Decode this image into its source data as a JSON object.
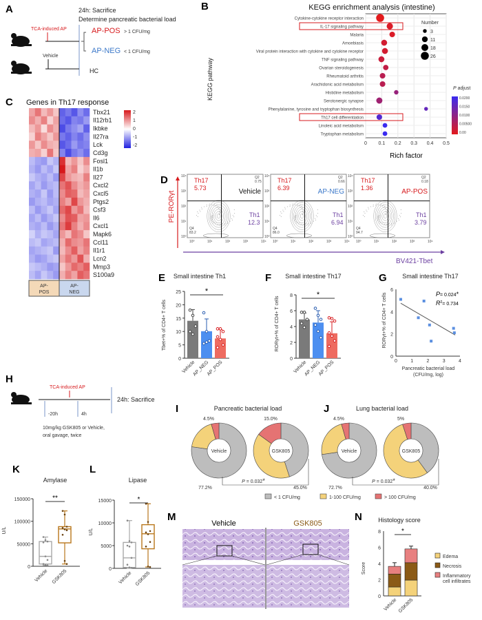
{
  "panels": {
    "A": "A",
    "B": "B",
    "C": "C",
    "D": "D",
    "E": "E",
    "F": "F",
    "G": "G",
    "H": "H",
    "I": "I",
    "J": "J",
    "K": "K",
    "L": "L",
    "M": "M",
    "N": "N"
  },
  "colors": {
    "red": "#d7191c",
    "blue": "#3b78c9",
    "purple": "#6b3fa0",
    "gray": "#bdbdbd",
    "yellow": "#f4d27a",
    "salmon": "#e57373",
    "brown": "#8b5a16",
    "amber": "#b8761a"
  },
  "panel_a": {
    "sacrifice": "24h: Sacrifice",
    "determine": "Determine pancreatic bacterial load",
    "tca": "TCA-induced AP",
    "vehicle": "Vehicle",
    "ap_pos": "AP-POS",
    "ap_pos_crit": "> 1 CFU/mg",
    "ap_neg": "AP-NEG",
    "ap_neg_crit": "< 1 CFU/mg",
    "hc": "HC",
    "icons": [
      "mouse-icon",
      "mouse-icon"
    ]
  },
  "chart_data": [
    {
      "id": "B",
      "type": "scatter",
      "title": "KEGG enrichment analysis (intestine)",
      "xlabel": "Rich factor",
      "ylabel": "KEGG pathway",
      "xlim": [
        0,
        0.5
      ],
      "xticks": [
        "0",
        "0.1",
        "0.2",
        "0.3",
        "0.4",
        "0.5"
      ],
      "grid": true,
      "categories": [
        "Cytokine-cytokine receptor interaction",
        "IL-17 signaling pathway",
        "Malaria",
        "Amoebiasis",
        "Viral protein interaction with cytokine and cytokine receptor",
        "TNF signaling pathway",
        "Ovarian steroidogenesis",
        "Rheumatoid arthritis",
        "Arachidonic acid metabolism",
        "Histidine metabolism",
        "Serotonergic synapse",
        "Phenylalanine, tyrosine and tryptophan biosynthesis",
        "Th17 cell differentiation",
        "Linoleic acid metabolism",
        "Tryptophan metabolism"
      ],
      "rich_factor": [
        0.09,
        0.15,
        0.165,
        0.115,
        0.12,
        0.098,
        0.125,
        0.105,
        0.105,
        0.19,
        0.085,
        0.375,
        0.085,
        0.12,
        0.12
      ],
      "number": [
        26,
        14,
        10,
        12,
        12,
        12,
        9,
        10,
        10,
        5,
        13,
        3,
        10,
        6,
        6
      ],
      "p_adjust": [
        0.0,
        0.001,
        0.001,
        0.002,
        0.002,
        0.003,
        0.004,
        0.005,
        0.005,
        0.009,
        0.008,
        0.015,
        0.017,
        0.02,
        0.02
      ],
      "highlighted": [
        "IL-17 signaling pathway",
        "Th17 cell differentiation"
      ],
      "size_legend": {
        "title": "Number",
        "values": [
          3,
          11,
          18,
          26
        ]
      },
      "color_legend": {
        "title_italic": "P",
        "title": " adjust",
        "ticks": [
          "0.0200",
          "0.0150",
          "0.0100",
          "0.00500",
          "0.00"
        ]
      },
      "legend_placement": "right"
    },
    {
      "id": "C",
      "type": "heatmap",
      "title": "Genes in Th17 response",
      "genes": [
        "Tbx21",
        "Il12rb1",
        "Ikbke",
        "Il27ra",
        "Lck",
        "Cd3g",
        "Fosl1",
        "Il1b",
        "Il27",
        "Cxcl2",
        "Cxcl5",
        "Ptgs2",
        "Csf3",
        "Il6",
        "Cxcl1",
        "Mapk6",
        "Ccl11",
        "Il1r1",
        "Lcn2",
        "Mmp3",
        "S100a9"
      ],
      "groups": [
        "AP-\nPOS",
        "AP-\nNEG"
      ],
      "group_labels": [
        [
          "AP-",
          "POS"
        ],
        [
          "AP-",
          "NEG"
        ]
      ],
      "colorbar_ticks": [
        "2",
        "1",
        "0",
        "-1",
        "-2"
      ],
      "values": [
        [
          0.8,
          1.2,
          0.6,
          0.9,
          0.5,
          -1.4,
          -1.2,
          -1.5,
          -1.0,
          -1.3
        ],
        [
          1.0,
          0.7,
          1.1,
          0.4,
          0.8,
          -1.3,
          -1.5,
          -1.1,
          -1.2,
          -0.9
        ],
        [
          0.6,
          0.9,
          0.3,
          1.0,
          0.7,
          -1.6,
          -1.2,
          -1.0,
          -0.8,
          -1.4
        ],
        [
          0.4,
          1.1,
          0.8,
          0.5,
          0.9,
          -1.2,
          -1.4,
          -1.1,
          -1.3,
          -1.0
        ],
        [
          0.9,
          0.5,
          1.0,
          0.7,
          0.6,
          -1.5,
          -1.3,
          -0.9,
          -1.2,
          -1.1
        ],
        [
          0.7,
          0.8,
          0.4,
          1.2,
          0.5,
          -1.1,
          -1.6,
          -1.2,
          -1.0,
          -1.3
        ],
        [
          -0.6,
          -0.8,
          -0.9,
          -0.5,
          -0.7,
          1.8,
          0.6,
          0.9,
          0.5,
          1.0
        ],
        [
          -0.7,
          -0.9,
          -0.6,
          -0.8,
          -0.5,
          2.0,
          0.8,
          1.1,
          0.4,
          0.7
        ],
        [
          -0.5,
          -0.7,
          -0.8,
          -0.6,
          -0.9,
          1.6,
          0.9,
          0.7,
          0.6,
          1.1
        ],
        [
          -0.8,
          -0.6,
          -0.9,
          -0.7,
          -0.6,
          1.2,
          1.5,
          1.0,
          0.7,
          0.9
        ],
        [
          -0.7,
          -0.8,
          -0.5,
          -0.9,
          -0.6,
          1.0,
          1.4,
          1.3,
          0.6,
          0.8
        ],
        [
          -0.9,
          -0.7,
          -0.6,
          -0.8,
          -0.7,
          1.1,
          0.8,
          1.6,
          0.9,
          0.7
        ],
        [
          -0.6,
          -0.9,
          -0.7,
          -0.5,
          -0.8,
          1.3,
          1.6,
          0.9,
          1.2,
          0.6
        ],
        [
          -0.8,
          -0.6,
          -0.9,
          -0.7,
          -0.5,
          1.0,
          1.5,
          1.4,
          0.8,
          0.9
        ],
        [
          -0.7,
          -0.8,
          -0.6,
          -0.9,
          -0.7,
          1.2,
          1.7,
          1.1,
          0.7,
          1.0
        ],
        [
          -0.4,
          -0.7,
          -0.5,
          -0.6,
          -0.8,
          0.9,
          0.6,
          1.2,
          1.0,
          0.5
        ],
        [
          -0.6,
          -0.5,
          -0.8,
          -0.7,
          -0.6,
          0.7,
          1.3,
          1.0,
          0.9,
          1.2
        ],
        [
          -0.8,
          -0.7,
          -0.6,
          -0.5,
          -0.9,
          0.6,
          1.0,
          1.4,
          0.8,
          1.1
        ],
        [
          -0.7,
          -0.9,
          -0.8,
          -0.6,
          -0.5,
          0.8,
          1.2,
          0.9,
          1.5,
          0.7
        ],
        [
          -0.5,
          -0.6,
          -0.7,
          -0.9,
          -0.8,
          0.5,
          0.9,
          1.3,
          1.1,
          1.4
        ],
        [
          -0.6,
          -0.8,
          -0.5,
          -0.7,
          -0.9,
          0.7,
          1.1,
          0.8,
          1.4,
          1.2
        ]
      ]
    },
    {
      "id": "E",
      "type": "bar",
      "title": "Small intestine Th1",
      "ylabel": "Tbet+% of CD4+ T cells",
      "categories": [
        "Vehicle",
        "AP_NEG",
        "AP_POS"
      ],
      "values": [
        14.0,
        10.1,
        7.4
      ],
      "errors": [
        4.2,
        4.6,
        3.3
      ],
      "points": [
        [
          18,
          16,
          12,
          10,
          9
        ],
        [
          17,
          10,
          6.5,
          5.5,
          6
        ],
        [
          11,
          11,
          10,
          8,
          7,
          5,
          4
        ]
      ],
      "ylim": [
        0,
        25
      ],
      "yticks": [
        0,
        5,
        10,
        15,
        20,
        25
      ],
      "significance": "*"
    },
    {
      "id": "F",
      "type": "bar",
      "title": "Small intestine Th17",
      "ylabel": "RORγt+% of CD4+ T cells",
      "categories": [
        "Vehicle",
        "AP_NEG",
        "AP_POS"
      ],
      "values": [
        4.9,
        4.5,
        3.15
      ],
      "errors": [
        0.8,
        1.5,
        1.45
      ],
      "points": [
        [
          5.8,
          5.8,
          4.9,
          4.4,
          3.9
        ],
        [
          6.3,
          5.4,
          4.9,
          4.2,
          3.4,
          2.6
        ],
        [
          5.1,
          5.0,
          4.7,
          3.2,
          2.8,
          2.2,
          1.5
        ]
      ],
      "ylim": [
        0,
        8
      ],
      "yticks": [
        0,
        2,
        4,
        6,
        8
      ],
      "significance": "*"
    },
    {
      "id": "G",
      "type": "scatter",
      "title": "Small intestine Th17",
      "ylabel": "RORγt+% of CD4+ T cells",
      "xlabel": [
        "Pancreatic bacterial load",
        "(CFU/mg, log)"
      ],
      "x": [
        0.3,
        1.4,
        1.75,
        2.1,
        2.2,
        3.6,
        3.65
      ],
      "y": [
        5.1,
        3.45,
        4.95,
        2.8,
        1.35,
        2.5,
        2.1
      ],
      "fit": {
        "x": [
          0.3,
          3.7
        ],
        "y": [
          4.75,
          1.9
        ]
      },
      "xlim": [
        0,
        4
      ],
      "ylim": [
        0,
        6
      ],
      "xticks": [
        0,
        1,
        2,
        3,
        4
      ],
      "yticks": [
        0,
        2,
        4,
        6
      ],
      "p_label": "P",
      "p_value": "= 0.024",
      "p_star": "*",
      "r2_label": "R",
      "r2_sup": "2",
      "r2_value": "= 0.734"
    },
    {
      "id": "I",
      "type": "pie",
      "title": "Pancreatic bacterial load",
      "donuts": [
        {
          "name": "Vehicle",
          "values": [
            77.2,
            18.3,
            4.5
          ],
          "labels": {
            "gray": "77.2%",
            "red": "4.5%"
          }
        },
        {
          "name": "GSK805",
          "values": [
            45.0,
            40.0,
            15.0
          ],
          "labels": {
            "gray": "45.0%",
            "red": "15.0%"
          }
        }
      ],
      "p_label": "P",
      "p_value": "= 0.032",
      "p_star": "*"
    },
    {
      "id": "J",
      "type": "pie",
      "title": "Lung bacterial load",
      "donuts": [
        {
          "name": "Vehicle",
          "values": [
            72.7,
            22.8,
            4.5
          ],
          "labels": {
            "gray": "72.7%",
            "red": "4.5%"
          }
        },
        {
          "name": "GSK805",
          "values": [
            40.0,
            55.0,
            5.0
          ],
          "labels": {
            "gray": "40.0%",
            "red": "5%"
          }
        }
      ],
      "p_label": "P",
      "p_value": "= 0.032",
      "p_star": "*"
    },
    {
      "id": "K",
      "type": "box",
      "title": "Amylase",
      "ylabel": "U/L",
      "categories": [
        "Vehicle",
        "GSK805"
      ],
      "boxes": [
        {
          "min": 2000,
          "q1": 5000,
          "median": 22000,
          "q3": 55000,
          "max": 65000
        },
        {
          "min": 5000,
          "q1": 52000,
          "median": 83000,
          "q3": 88000,
          "max": 123000
        }
      ],
      "points": [
        [
          65000,
          58000,
          55000,
          53000,
          22000,
          14000,
          5000,
          3000,
          2000
        ],
        [
          123000,
          115000,
          88000,
          85000,
          82000,
          80000,
          70000,
          12000,
          5000
        ]
      ],
      "ylim": [
        0,
        150000
      ],
      "yticks": [
        "0",
        "50000",
        "100000",
        "150000"
      ],
      "significance": "**"
    },
    {
      "id": "L",
      "type": "box",
      "title": "Lipase",
      "ylabel": "U/L",
      "categories": [
        "Vehicle",
        "GSK805"
      ],
      "boxes": [
        {
          "min": 0,
          "q1": 200,
          "median": 2300,
          "q3": 5700,
          "max": 10500
        },
        {
          "min": 300,
          "q1": 4300,
          "median": 7600,
          "q3": 9600,
          "max": 14200
        }
      ],
      "points": [
        [
          10500,
          6000,
          5700,
          5000,
          4800,
          2300,
          800,
          200,
          100
        ],
        [
          14200,
          10200,
          8200,
          7900,
          7500,
          5800,
          4800,
          400,
          300
        ]
      ],
      "ylim": [
        0,
        15000
      ],
      "yticks": [
        "0",
        "5000",
        "10000",
        "15000"
      ],
      "significance": "*"
    },
    {
      "id": "N",
      "type": "bar",
      "stacked": true,
      "title": "Histology score",
      "ylabel": "Score",
      "categories": [
        "Vehicle",
        "GSK805"
      ],
      "series": [
        {
          "name": "Edema",
          "values": [
            1.1,
            1.95
          ]
        },
        {
          "name": "Necrosis",
          "values": [
            1.6,
            2.15
          ]
        },
        {
          "name": "Inflammatory cell infiltrates",
          "name_lines": [
            "Inflammatory",
            "cell infiltrates"
          ],
          "values": [
            0.95,
            1.7
          ]
        }
      ],
      "totals_error": [
        0.45,
        0.35
      ],
      "ylim": [
        0,
        8
      ],
      "yticks": [
        0,
        2,
        4,
        6,
        8
      ],
      "significance": "*",
      "legend_placement": "right"
    }
  ],
  "panel_d": {
    "y_axis": "PE-RORγt",
    "x_axis": "BV421-Tbet",
    "plots": [
      {
        "group": "Vehicle",
        "th17_label": "Th17",
        "th17": "5.73",
        "q2": "Q2",
        "q2_val": "0.75",
        "th1_label": "Th1",
        "th1": "12.3",
        "q4": "Q4",
        "q4_val": "83.2"
      },
      {
        "group": "AP-NEG",
        "th17_label": "Th17",
        "th17": "6.39",
        "q2": "Q2",
        "q2_val": "0.66",
        "th1_label": "Th1",
        "th1": "6.94",
        "q4": "Q4",
        "q4_val": "86.0"
      },
      {
        "group": "AP-POS",
        "th17_label": "Th17",
        "th17": "1.36",
        "q2": "Q2",
        "q2_val": "0.18",
        "th1_label": "Th1",
        "th1": "3.79",
        "q4": "Q4",
        "q4_val": "94.7"
      }
    ],
    "ticks": [
      "10⁰",
      "10¹",
      "10²",
      "10³",
      "10⁴"
    ]
  },
  "panel_h": {
    "tca": "TCA-induced AP",
    "t1": "-20h",
    "t2": "4h",
    "sacrifice": "24h: Sacrifice",
    "treatment_1": "10mg/kg GSK805 or Vehicle,",
    "treatment_2": "oral gavage, twice"
  },
  "legend_ij": [
    "< 1 CFU/mg",
    "1-100 CFU/mg",
    "> 100 CFU/mg"
  ],
  "panel_m": {
    "vehicle": "Vehicle",
    "gsk805": "GSK805"
  }
}
